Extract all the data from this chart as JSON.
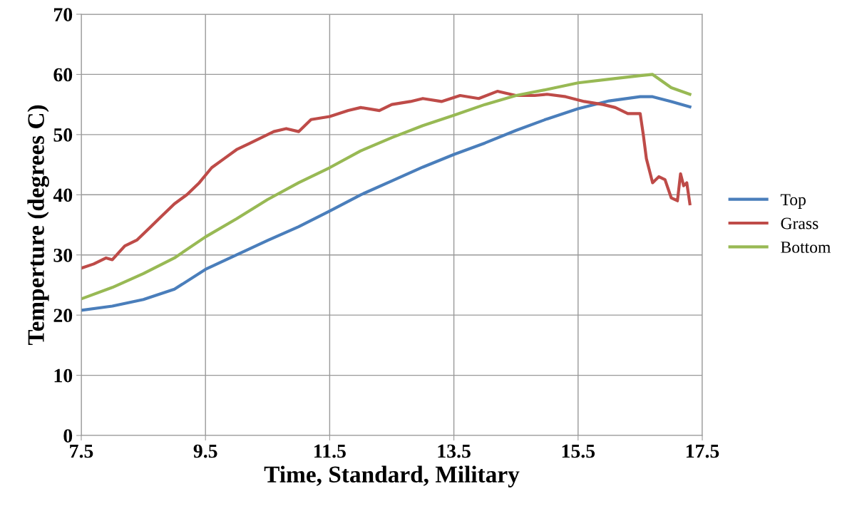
{
  "chart_data": {
    "type": "line",
    "xlabel": "Time, Standard, Military",
    "ylabel": "Temperture (degrees C)",
    "xlim": [
      7.5,
      17.5
    ],
    "xticks": [
      7.5,
      9.5,
      11.5,
      13.5,
      15.5,
      17.5
    ],
    "ylim": [
      0,
      70
    ],
    "yticks": [
      0,
      10,
      20,
      30,
      40,
      50,
      60,
      70
    ],
    "grid": true,
    "legend": "right",
    "marker": "none",
    "line_style": "solid",
    "series": [
      {
        "name": "Top",
        "color": "#4a7ebb",
        "x": [
          7.5,
          8.0,
          8.5,
          9.0,
          9.5,
          10.0,
          10.5,
          11.0,
          11.5,
          12.0,
          12.5,
          13.0,
          13.5,
          14.0,
          14.5,
          15.0,
          15.5,
          16.0,
          16.5,
          16.7,
          17.0,
          17.3
        ],
        "values": [
          20.8,
          21.5,
          22.6,
          24.3,
          27.6,
          30.0,
          32.4,
          34.7,
          37.3,
          40.0,
          42.3,
          44.6,
          46.7,
          48.6,
          50.7,
          52.6,
          54.3,
          55.6,
          56.3,
          56.3,
          55.5,
          54.6
        ]
      },
      {
        "name": "Grass",
        "color": "#be4b48",
        "x": [
          7.5,
          7.7,
          7.9,
          8.0,
          8.2,
          8.4,
          8.6,
          8.8,
          9.0,
          9.2,
          9.4,
          9.6,
          9.8,
          10.0,
          10.2,
          10.4,
          10.6,
          10.8,
          11.0,
          11.2,
          11.5,
          11.8,
          12.0,
          12.3,
          12.5,
          12.8,
          13.0,
          13.3,
          13.6,
          13.9,
          14.2,
          14.5,
          14.8,
          15.0,
          15.3,
          15.6,
          15.9,
          16.1,
          16.3,
          16.5,
          16.55,
          16.6,
          16.7,
          16.8,
          16.9,
          17.0,
          17.1,
          17.15,
          17.2,
          17.25,
          17.3
        ],
        "values": [
          27.8,
          28.5,
          29.5,
          29.2,
          31.5,
          32.5,
          34.5,
          36.5,
          38.5,
          40.0,
          42.0,
          44.5,
          46.0,
          47.5,
          48.5,
          49.5,
          50.5,
          51.0,
          50.5,
          52.5,
          53.0,
          54.0,
          54.5,
          54.0,
          55.0,
          55.5,
          56.0,
          55.5,
          56.5,
          56.0,
          57.2,
          56.5,
          56.5,
          56.7,
          56.3,
          55.5,
          55.0,
          54.5,
          53.5,
          53.5,
          50.0,
          46.0,
          42.0,
          43.0,
          42.5,
          39.5,
          39.0,
          43.5,
          41.5,
          42.0,
          38.5
        ]
      },
      {
        "name": "Bottom",
        "color": "#98b954",
        "x": [
          7.5,
          8.0,
          8.5,
          9.0,
          9.5,
          10.0,
          10.5,
          11.0,
          11.5,
          12.0,
          12.5,
          13.0,
          13.5,
          14.0,
          14.5,
          15.0,
          15.5,
          16.0,
          16.5,
          16.7,
          17.0,
          17.3
        ],
        "values": [
          22.7,
          24.6,
          26.9,
          29.5,
          33.0,
          36.0,
          39.2,
          42.0,
          44.5,
          47.3,
          49.5,
          51.5,
          53.2,
          55.0,
          56.5,
          57.5,
          58.6,
          59.2,
          59.8,
          60.0,
          57.8,
          56.7
        ]
      }
    ]
  }
}
